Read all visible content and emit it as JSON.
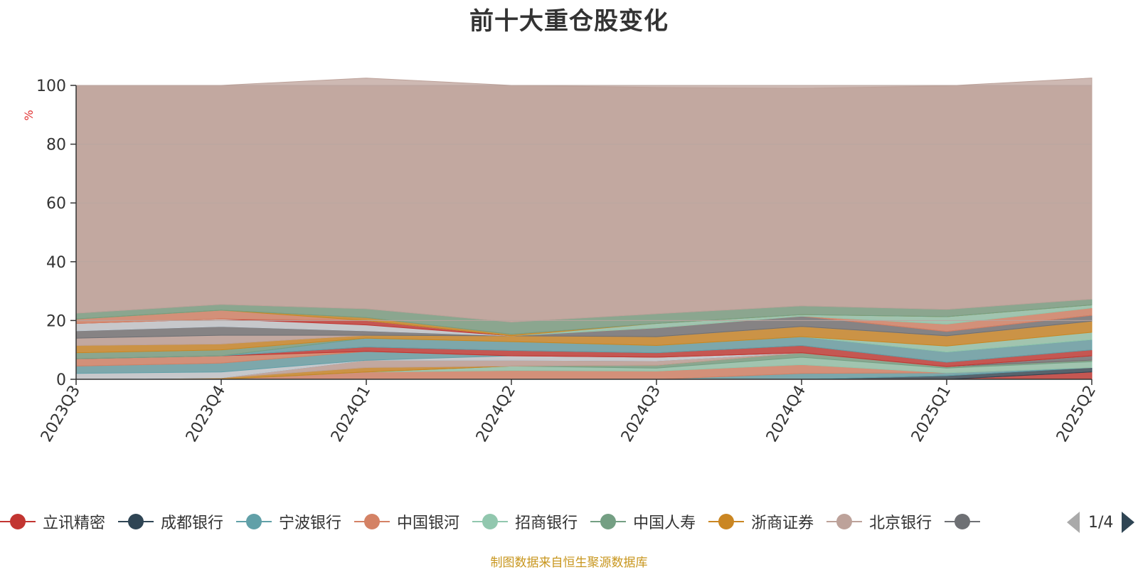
{
  "title": "前十大重仓股变化",
  "source_note": "制图数据来自恒生聚源数据库",
  "pager": {
    "text": "1/4"
  },
  "legend_items": [
    {
      "name": "立讯精密",
      "color": "#c23531",
      "icon": "circle-icon"
    },
    {
      "name": "成都银行",
      "color": "#2f4554",
      "icon": "circle-icon"
    },
    {
      "name": "宁波银行",
      "color": "#61a0a8",
      "icon": "circle-icon"
    },
    {
      "name": "中国银河",
      "color": "#d48265",
      "icon": "circle-icon"
    },
    {
      "name": "招商银行",
      "color": "#91c7ae",
      "icon": "circle-icon"
    },
    {
      "name": "中国人寿",
      "color": "#749f83",
      "icon": "circle-icon"
    },
    {
      "name": "浙商证券",
      "color": "#ca8622",
      "icon": "circle-icon"
    },
    {
      "name": "北京银行",
      "color": "#bda29a",
      "icon": "circle-icon"
    },
    {
      "name": "",
      "color": "#6e7074",
      "icon": "circle-icon"
    }
  ],
  "chart_data": {
    "type": "area",
    "stacked": true,
    "title": "前十大重仓股变化",
    "ylabel": "%",
    "ylim": [
      0,
      100
    ],
    "yticks": [
      0,
      20,
      40,
      60,
      80,
      100
    ],
    "grid": true,
    "legend_position": "bottom",
    "x": [
      "2023Q3",
      "2023Q4",
      "2024Q1",
      "2024Q2",
      "2024Q3",
      "2024Q4",
      "2025Q1",
      "2025Q2"
    ],
    "series": [
      {
        "color": "#c23531",
        "values": [
          0,
          0,
          0,
          0,
          0,
          0,
          0,
          2.5
        ]
      },
      {
        "color": "#2f4554",
        "values": [
          0,
          0,
          0,
          0,
          0,
          0,
          1.2,
          1.5
        ]
      },
      {
        "color": "#61a0a8",
        "values": [
          0,
          0,
          0,
          0,
          0,
          2.0,
          1.0,
          0
        ]
      },
      {
        "color": "#d48265",
        "values": [
          0,
          0,
          2.5,
          3.0,
          2.8,
          3.0,
          0,
          0
        ]
      },
      {
        "color": "#91c7ae",
        "values": [
          0,
          0,
          0,
          1.5,
          1.0,
          2.5,
          1.6,
          2.0
        ]
      },
      {
        "color": "#749f83",
        "values": [
          0,
          0,
          0,
          0,
          1.0,
          1.5,
          0.5,
          0.5
        ]
      },
      {
        "color": "#ca8622",
        "values": [
          0,
          0.5,
          1.5,
          0,
          0,
          0,
          0,
          0
        ]
      },
      {
        "color": "#bda29a",
        "values": [
          0,
          0,
          2.5,
          2.0,
          1.5,
          0,
          0,
          0
        ]
      },
      {
        "color": "#6e7074",
        "values": [
          0,
          0,
          0,
          0,
          0,
          0,
          0,
          1.5
        ]
      },
      {
        "color": "#c4ccd3",
        "values": [
          2.0,
          2.0,
          0,
          1.5,
          1.2,
          0,
          0,
          0
        ]
      },
      {
        "color": "#61a0a8",
        "values": [
          2.5,
          3.0,
          3.0,
          0,
          0,
          0,
          0,
          0
        ]
      },
      {
        "color": "#d48265",
        "values": [
          2.5,
          2.5,
          0,
          0,
          0,
          0,
          0,
          0
        ]
      },
      {
        "color": "#c23531",
        "values": [
          0,
          0,
          1.5,
          1.8,
          1.5,
          2.5,
          1.5,
          2.0
        ]
      },
      {
        "color": "#61a0a8",
        "values": [
          0,
          0,
          3.0,
          3.0,
          2.5,
          3.0,
          3.5,
          3.5
        ]
      },
      {
        "color": "#749f83",
        "values": [
          2.0,
          2.0,
          0,
          0,
          0,
          0,
          0,
          0
        ]
      },
      {
        "color": "#91c7ae",
        "values": [
          0,
          0,
          0,
          0,
          0,
          0,
          2.0,
          2.5
        ]
      },
      {
        "color": "#ca8622",
        "values": [
          2.5,
          2.0,
          1.0,
          2.0,
          3.0,
          3.5,
          3.5,
          3.8
        ]
      },
      {
        "color": "#bda29a",
        "values": [
          2.5,
          3.0,
          0,
          0,
          0,
          0,
          0,
          0
        ]
      },
      {
        "color": "#6e7074",
        "values": [
          2.5,
          3.0,
          1.5,
          0,
          3.0,
          3.5,
          1.5,
          2.0
        ]
      },
      {
        "color": "#c4ccd3",
        "values": [
          2.5,
          2.5,
          2.0,
          0,
          0,
          0,
          0,
          0
        ]
      },
      {
        "color": "#c23531",
        "values": [
          0,
          0,
          1.5,
          0,
          0,
          0,
          0,
          0
        ]
      },
      {
        "color": "#d48265",
        "values": [
          1.5,
          3.0,
          0,
          0,
          0,
          0,
          2.5,
          2.5
        ]
      },
      {
        "color": "#91c7ae",
        "values": [
          0,
          0,
          0,
          0,
          1.5,
          0.5,
          2.5,
          1.0
        ]
      },
      {
        "color": "#ca8622",
        "values": [
          0,
          0,
          1.0,
          0.5,
          0,
          0,
          0,
          0
        ]
      },
      {
        "color": "#749f83",
        "values": [
          2.0,
          2.0,
          3.0,
          4.2,
          3.3,
          3.0,
          2.5,
          2.0
        ]
      },
      {
        "color": "#bda29a",
        "values": [
          77.5,
          74.5,
          78.5,
          80.5,
          77.0,
          74.0,
          76.0,
          75.2
        ]
      }
    ]
  }
}
